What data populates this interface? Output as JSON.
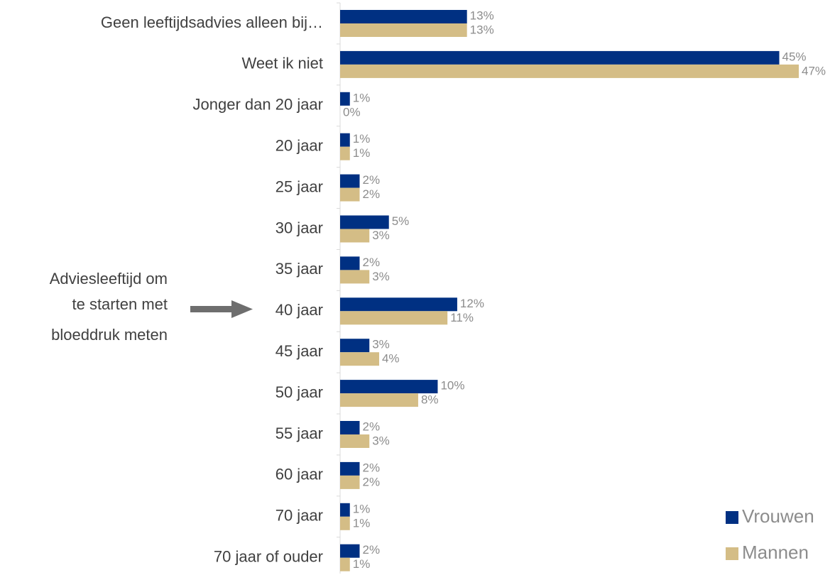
{
  "chart_data": {
    "type": "bar",
    "orientation": "horizontal",
    "categories": [
      "Geen leeftijdsadvies alleen bij…",
      "Weet ik niet",
      "Jonger dan 20 jaar",
      "20 jaar",
      "25 jaar",
      "30 jaar",
      "35 jaar",
      "40 jaar",
      "45 jaar",
      "50 jaar",
      "55 jaar",
      "60 jaar",
      "70 jaar",
      "70 jaar of ouder"
    ],
    "series": [
      {
        "name": "Vrouwen",
        "color": "#003082",
        "values": [
          13,
          45,
          1,
          1,
          2,
          5,
          2,
          12,
          3,
          10,
          2,
          2,
          1,
          2
        ],
        "value_labels": [
          "13%",
          "45%",
          "1%",
          "1%",
          "2%",
          "5%",
          "2%",
          "12%",
          "3%",
          "10%",
          "2%",
          "2%",
          "1%",
          "2%"
        ]
      },
      {
        "name": "Mannen",
        "color": "#d4bd86",
        "values": [
          13,
          47,
          0,
          1,
          2,
          3,
          3,
          11,
          4,
          8,
          3,
          2,
          1,
          1
        ],
        "value_labels": [
          "13%",
          "47%",
          "0%",
          "1%",
          "2%",
          "3%",
          "3%",
          "11%",
          "4%",
          "8%",
          "3%",
          "2%",
          "1%",
          "1%"
        ]
      }
    ],
    "annotation": [
      "Adviesleeftijd om",
      "te starten met",
      "bloeddruk meten"
    ],
    "legend": "bottom-right"
  }
}
